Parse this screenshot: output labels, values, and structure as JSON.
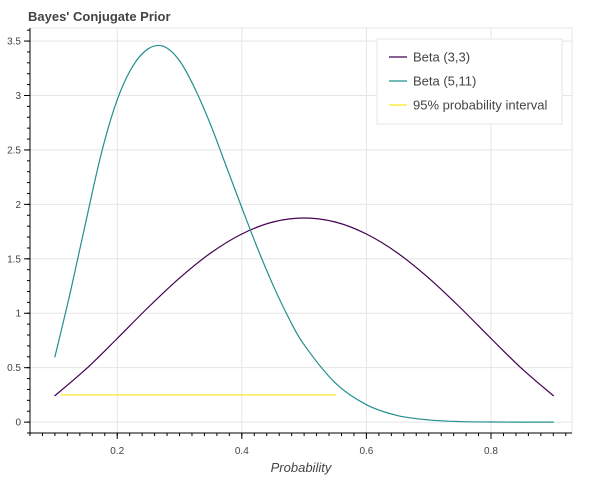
{
  "chart_data": {
    "type": "line",
    "title": "Bayes' Conjugate Prior",
    "xlabel": "Probability",
    "ylabel": "",
    "xlim": [
      0.06,
      0.93
    ],
    "ylim": [
      -0.1,
      3.62
    ],
    "xticks": [
      0.2,
      0.4,
      0.6,
      0.8
    ],
    "xtick_labels": [
      "0.2",
      "0.4",
      "0.6",
      "0.8"
    ],
    "yticks": [
      0,
      0.5,
      1,
      1.5,
      2,
      2.5,
      3,
      3.5
    ],
    "ytick_labels": [
      "0",
      "0.5",
      "1",
      "1.5",
      "2",
      "2.5",
      "3",
      "3.5"
    ],
    "grid": true,
    "legend_position": "top-right",
    "series": [
      {
        "name": "Beta (3,3)",
        "color": "#440154",
        "x": [
          0.1,
          0.15,
          0.2,
          0.25,
          0.3,
          0.35,
          0.4,
          0.45,
          0.5,
          0.55,
          0.6,
          0.65,
          0.7,
          0.75,
          0.8,
          0.85,
          0.9
        ],
        "y": [
          0.243,
          0.488,
          0.768,
          1.055,
          1.323,
          1.553,
          1.728,
          1.838,
          1.875,
          1.838,
          1.728,
          1.553,
          1.323,
          1.055,
          0.768,
          0.488,
          0.243
        ]
      },
      {
        "name": "Beta (5,11)",
        "color": "#21908d",
        "x": [
          0.1,
          0.125,
          0.15,
          0.175,
          0.2,
          0.225,
          0.25,
          0.275,
          0.3,
          0.325,
          0.35,
          0.375,
          0.4,
          0.425,
          0.45,
          0.475,
          0.5,
          0.55,
          0.6,
          0.65,
          0.7,
          0.75,
          0.8,
          0.85,
          0.9
        ],
        "y": [
          0.6,
          1.2,
          1.85,
          2.48,
          2.96,
          3.27,
          3.43,
          3.45,
          3.32,
          3.06,
          2.73,
          2.35,
          1.97,
          1.6,
          1.26,
          0.96,
          0.71,
          0.36,
          0.16,
          0.06,
          0.02,
          0.005,
          0.001,
          0.0,
          0.0
        ]
      },
      {
        "name": "95% probability interval",
        "color": "#fde725",
        "x": [
          0.11,
          0.55
        ],
        "y": [
          0.25,
          0.25
        ]
      }
    ]
  }
}
